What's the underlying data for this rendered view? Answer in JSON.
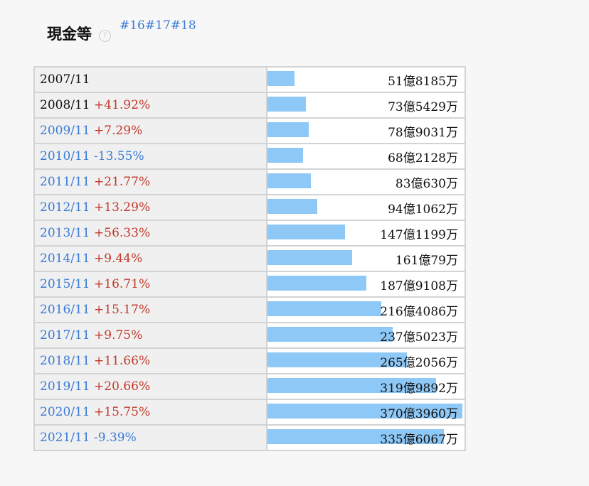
{
  "header": {
    "title": "現金等",
    "help_glyph": "?",
    "tags": [
      "#16",
      "#17",
      "#18"
    ]
  },
  "colors": {
    "bar": "#8ec8f6",
    "increase": "#c0392b",
    "decrease": "#3a7bd5",
    "link": "#3a7bd5"
  },
  "chart_data": {
    "type": "bar",
    "unit": "億円",
    "orientation": "horizontal",
    "categories": [
      "2007/11",
      "2008/11",
      "2009/11",
      "2010/11",
      "2011/11",
      "2012/11",
      "2013/11",
      "2014/11",
      "2015/11",
      "2016/11",
      "2017/11",
      "2018/11",
      "2019/11",
      "2020/11",
      "2021/11"
    ],
    "values": [
      51.8185,
      73.5429,
      78.9031,
      68.2128,
      83.063,
      94.1062,
      147.1199,
      161.0079,
      187.9108,
      216.4086,
      237.5023,
      265.2056,
      319.9892,
      370.396,
      335.6067
    ],
    "value_labels": [
      "51億8185万",
      "73億5429万",
      "78億9031万",
      "68億2128万",
      "83億630万",
      "94億1062万",
      "147億1199万",
      "161億79万",
      "187億9108万",
      "216億4086万",
      "237億5023万",
      "265億2056万",
      "319億9892万",
      "370億3960万",
      "335億6067万"
    ],
    "changes": [
      "",
      "+41.92%",
      "+7.29%",
      "-13.55%",
      "+21.77%",
      "+13.29%",
      "+56.33%",
      "+9.44%",
      "+16.71%",
      "+15.17%",
      "+9.75%",
      "+11.66%",
      "+20.66%",
      "+15.75%",
      "-9.39%"
    ],
    "linked": [
      false,
      false,
      true,
      true,
      true,
      true,
      true,
      true,
      true,
      true,
      true,
      true,
      true,
      true,
      true
    ],
    "xlim": [
      0,
      370.396
    ]
  }
}
